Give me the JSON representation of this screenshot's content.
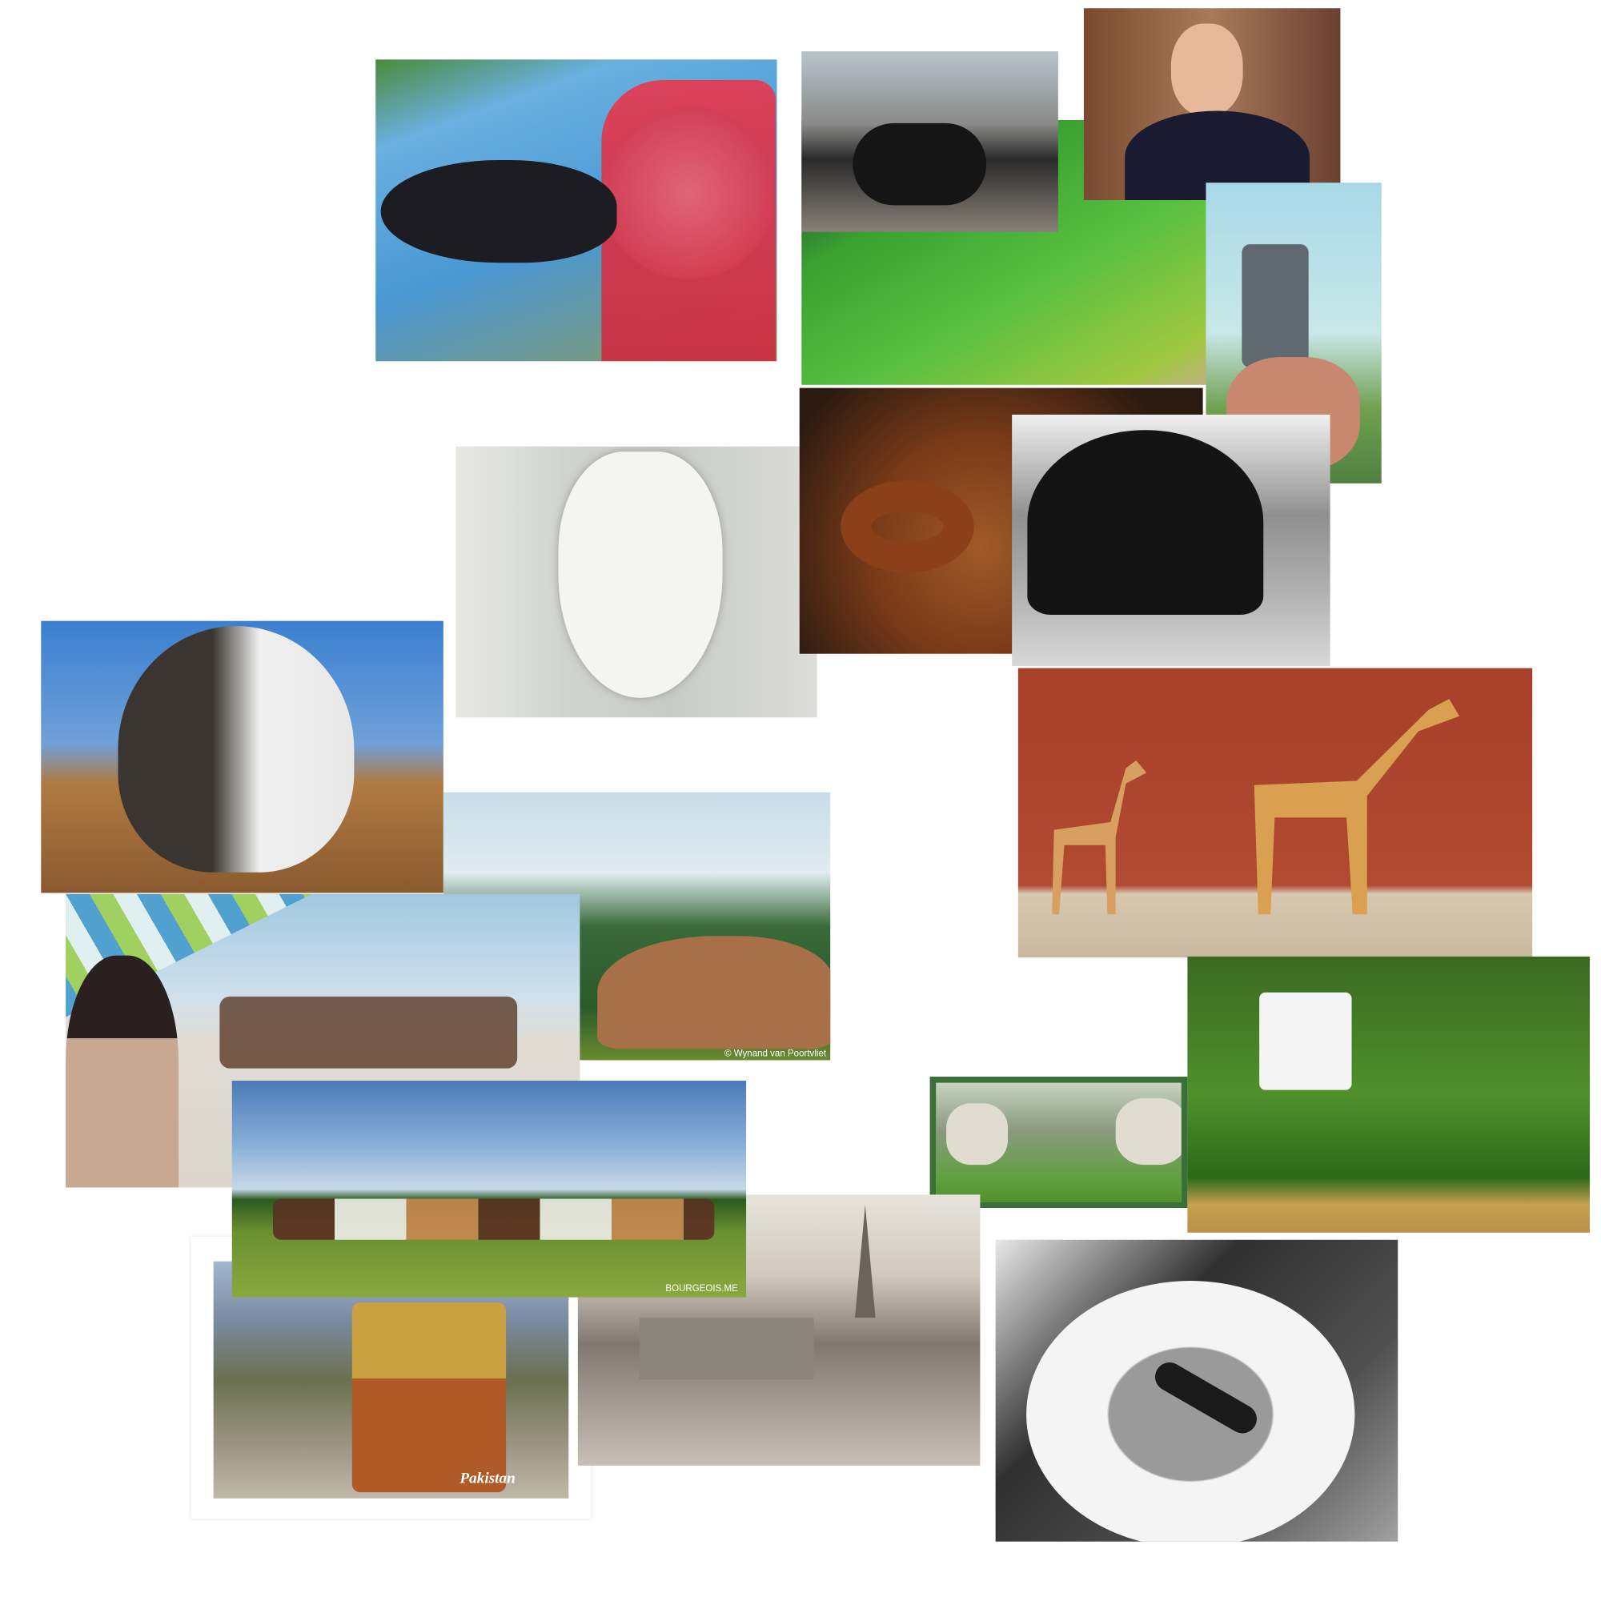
{
  "photos": {
    "cow_credit": "© Wynand van Poortvliet",
    "field_credit": "BOURGEOIS.ME",
    "truck_caption": "Pakistan"
  }
}
